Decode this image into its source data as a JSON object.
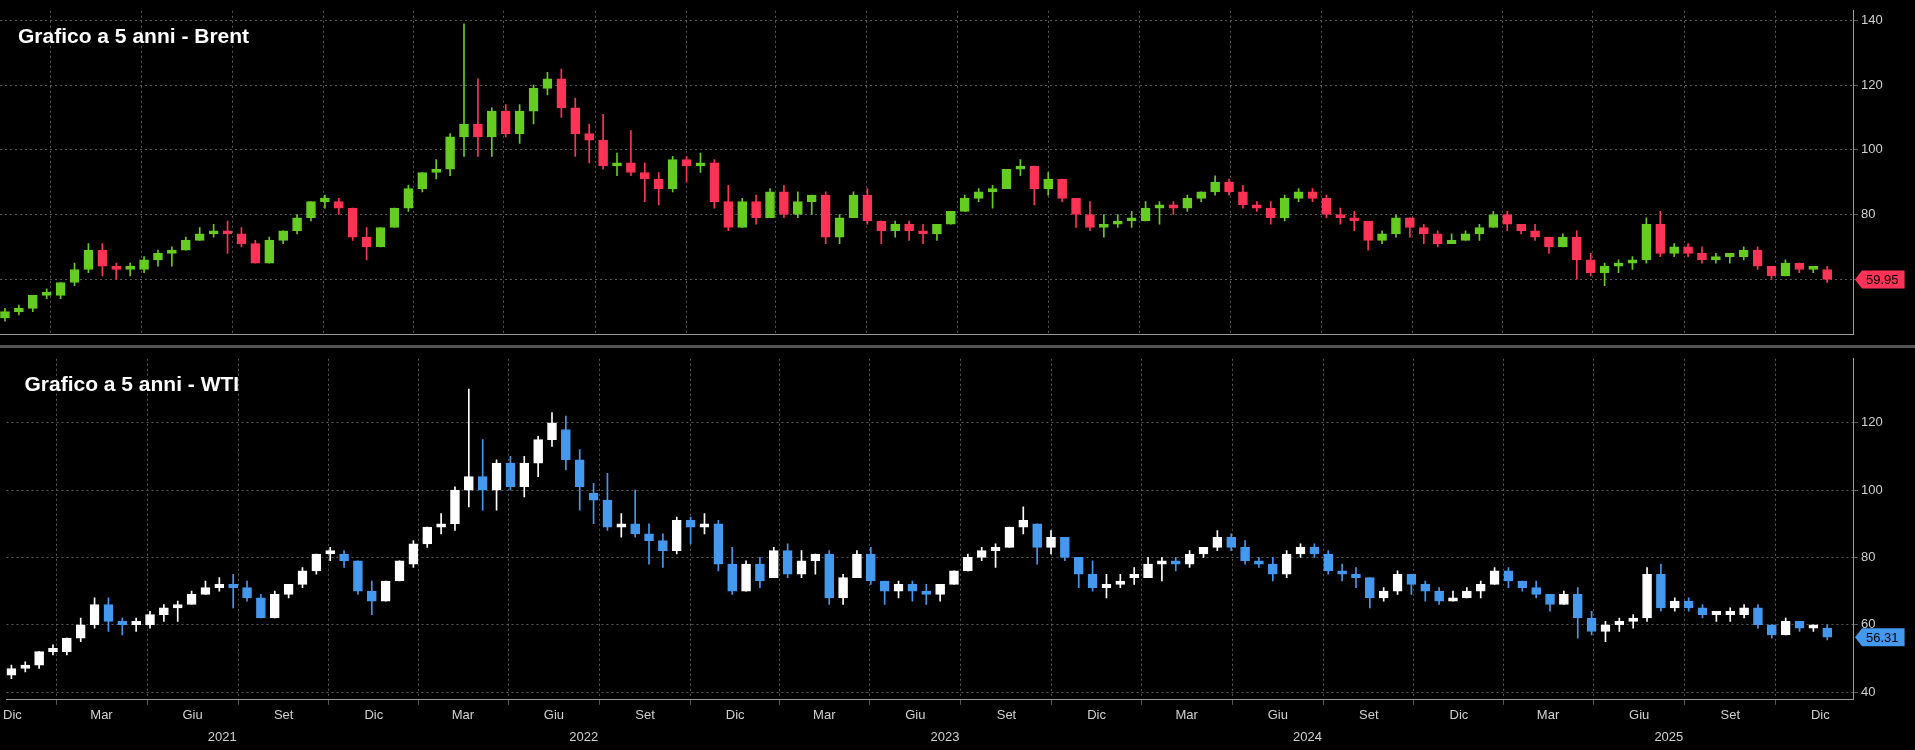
{
  "chart_data": [
    {
      "type": "candlestick",
      "title": "Grafico a 5 anni - Brent",
      "colors": [
        "#66cc22",
        "#66cc22",
        "#66cc22",
        "#66cc22",
        "#66cc22",
        "#66cc22",
        "#66cc22",
        "#ff3355",
        "#ff3355",
        "#66cc22",
        "#66cc22",
        "#66cc22",
        "#66cc22",
        "#66cc22",
        "#66cc22",
        "#66cc22",
        "#ff3355",
        "#ff3355",
        "#ff3355",
        "#66cc22",
        "#66cc22",
        "#66cc22",
        "#66cc22",
        "#66cc22",
        "#ff3355",
        "#ff3355",
        "#ff3355",
        "#66cc22",
        "#66cc22",
        "#66cc22",
        "#66cc22",
        "#66cc22",
        "#66cc22",
        "#66cc22",
        "#ff3355",
        "#66cc22",
        "#ff3355",
        "#66cc22",
        "#66cc22",
        "#66cc22",
        "#ff3355",
        "#ff3355",
        "#ff3355",
        "#ff3355",
        "#66cc22",
        "#ff3355",
        "#ff3355",
        "#ff3355",
        "#66cc22",
        "#ff3355",
        "#66cc22",
        "#ff3355",
        "#ff3355",
        "#66cc22",
        "#ff3355",
        "#66cc22",
        "#ff3355",
        "#66cc22",
        "#66cc22",
        "#ff3355",
        "#66cc22",
        "#66cc22",
        "#ff3355",
        "#ff3355",
        "#66cc22",
        "#ff3355",
        "#ff3355",
        "#66cc22",
        "#66cc22",
        "#66cc22",
        "#66cc22",
        "#66cc22",
        "#66cc22",
        "#66cc22",
        "#ff3355",
        "#66cc22",
        "#ff3355",
        "#ff3355",
        "#ff3355",
        "#66cc22",
        "#66cc22",
        "#66cc22",
        "#66cc22",
        "#66cc22",
        "#ff3355",
        "#66cc22",
        "#66cc22",
        "#66cc22",
        "#ff3355",
        "#ff3355",
        "#ff3355",
        "#ff3355",
        "#66cc22",
        "#66cc22",
        "#ff3355",
        "#ff3355",
        "#ff3355",
        "#ff3355",
        "#ff3355",
        "#66cc22",
        "#66cc22",
        "#ff3355",
        "#ff3355",
        "#ff3355",
        "#66cc22",
        "#66cc22",
        "#66cc22",
        "#66cc22",
        "#ff3355",
        "#ff3355",
        "#ff3355",
        "#ff3355",
        "#66cc22",
        "#ff3355",
        "#ff3355",
        "#66cc22",
        "#66cc22",
        "#66cc22",
        "#66cc22",
        "#ff3355",
        "#66cc22",
        "#ff3355",
        "#ff3355",
        "#66cc22",
        "#66cc22",
        "#66cc22",
        "#ff3355",
        "#ff3355",
        "#66cc22",
        "#ff3355",
        "#66cc22",
        "#ff3355"
      ],
      "x": [
        "2020-11-30",
        "2020-12-14",
        "2020-12-28",
        "2021-01-11",
        "2021-01-25",
        "2021-02-08",
        "2021-02-22",
        "2021-03-08",
        "2021-03-22",
        "2021-04-05",
        "2021-04-19",
        "2021-05-03",
        "2021-05-17",
        "2021-05-31",
        "2021-06-14",
        "2021-06-28",
        "2021-07-12",
        "2021-07-26",
        "2021-08-09",
        "2021-08-23",
        "2021-09-06",
        "2021-09-20",
        "2021-10-04",
        "2021-10-18",
        "2021-11-01",
        "2021-11-15",
        "2021-11-29",
        "2021-12-13",
        "2021-12-27",
        "2022-01-10",
        "2022-01-24",
        "2022-02-07",
        "2022-02-21",
        "2022-03-07",
        "2022-03-21",
        "2022-04-04",
        "2022-04-18",
        "2022-05-02",
        "2022-05-16",
        "2022-05-30",
        "2022-06-13",
        "2022-06-27",
        "2022-07-11",
        "2022-07-25",
        "2022-08-08",
        "2022-08-22",
        "2022-09-05",
        "2022-09-19",
        "2022-10-03",
        "2022-10-17",
        "2022-10-31",
        "2022-11-14",
        "2022-11-28",
        "2022-12-12",
        "2022-12-26",
        "2023-01-09",
        "2023-01-23",
        "2023-02-06",
        "2023-02-20",
        "2023-03-06",
        "2023-03-20",
        "2023-04-03",
        "2023-04-17",
        "2023-05-01",
        "2023-05-15",
        "2023-05-29",
        "2023-06-12",
        "2023-06-26",
        "2023-07-10",
        "2023-07-24",
        "2023-08-07",
        "2023-08-21",
        "2023-09-04",
        "2023-09-18",
        "2023-10-02",
        "2023-10-16",
        "2023-10-30",
        "2023-11-13",
        "2023-11-27",
        "2023-12-11",
        "2023-12-25",
        "2024-01-08",
        "2024-01-22",
        "2024-02-05",
        "2024-02-19",
        "2024-03-04",
        "2024-03-18",
        "2024-04-01",
        "2024-04-15",
        "2024-04-29",
        "2024-05-13",
        "2024-05-27",
        "2024-06-10",
        "2024-06-24",
        "2024-07-08",
        "2024-07-22",
        "2024-08-05",
        "2024-08-19",
        "2024-09-02",
        "2024-09-16",
        "2024-09-30",
        "2024-10-14",
        "2024-10-28",
        "2024-11-11",
        "2024-11-25",
        "2024-12-09",
        "2024-12-23",
        "2025-01-06",
        "2025-01-20",
        "2025-02-03",
        "2025-02-17",
        "2025-03-03",
        "2025-03-17",
        "2025-03-31",
        "2025-04-14",
        "2025-04-28",
        "2025-05-12",
        "2025-05-26",
        "2025-06-09",
        "2025-06-23",
        "2025-07-07",
        "2025-07-21",
        "2025-08-04",
        "2025-08-18",
        "2025-09-01",
        "2025-09-15",
        "2025-09-29",
        "2025-10-13",
        "2025-10-27",
        "2025-11-10",
        "2025-11-24",
        "2025-12-08"
      ],
      "ohlc": [
        [
          48,
          51,
          47,
          50
        ],
        [
          50,
          52,
          49,
          51
        ],
        [
          51,
          55,
          50,
          55
        ],
        [
          55,
          57,
          54,
          56
        ],
        [
          55,
          59,
          54,
          59
        ],
        [
          59,
          65,
          58,
          63
        ],
        [
          63,
          71,
          62,
          69
        ],
        [
          69,
          71,
          61,
          64
        ],
        [
          64,
          65,
          60,
          63
        ],
        [
          63,
          65,
          61,
          64
        ],
        [
          63,
          67,
          62,
          66
        ],
        [
          66,
          69,
          64,
          68
        ],
        [
          68,
          70,
          64,
          69
        ],
        [
          69,
          73,
          69,
          72
        ],
        [
          72,
          76,
          72,
          74
        ],
        [
          74,
          77,
          73,
          75
        ],
        [
          75,
          78,
          68,
          74
        ],
        [
          74,
          76,
          70,
          71
        ],
        [
          71,
          72,
          65,
          65
        ],
        [
          65,
          73,
          65,
          72
        ],
        [
          72,
          75,
          71,
          75
        ],
        [
          75,
          80,
          74,
          79
        ],
        [
          79,
          84,
          78,
          84
        ],
        [
          84,
          86,
          82,
          85
        ],
        [
          84,
          85,
          80,
          82
        ],
        [
          82,
          82,
          72,
          73
        ],
        [
          73,
          76,
          66,
          70
        ],
        [
          70,
          76,
          70,
          76
        ],
        [
          76,
          82,
          76,
          82
        ],
        [
          82,
          89,
          81,
          88
        ],
        [
          88,
          93,
          87,
          93
        ],
        [
          93,
          97,
          91,
          94
        ],
        [
          94,
          105,
          92,
          104
        ],
        [
          104,
          139,
          98,
          108
        ],
        [
          108,
          122,
          98,
          104
        ],
        [
          104,
          113,
          98,
          112
        ],
        [
          112,
          114,
          104,
          105
        ],
        [
          105,
          114,
          102,
          112
        ],
        [
          112,
          120,
          108,
          119
        ],
        [
          119,
          124,
          117,
          122
        ],
        [
          122,
          125,
          110,
          113
        ],
        [
          113,
          116,
          98,
          105
        ],
        [
          105,
          108,
          96,
          103
        ],
        [
          103,
          111,
          94,
          95
        ],
        [
          95,
          99,
          92,
          96
        ],
        [
          96,
          106,
          92,
          93
        ],
        [
          93,
          96,
          84,
          91
        ],
        [
          91,
          93,
          83,
          88
        ],
        [
          88,
          98,
          87,
          97
        ],
        [
          97,
          98,
          90,
          95
        ],
        [
          95,
          99,
          93,
          96
        ],
        [
          96,
          97,
          82,
          84
        ],
        [
          84,
          89,
          75,
          76
        ],
        [
          76,
          85,
          76,
          84
        ],
        [
          84,
          86,
          77,
          79
        ],
        [
          79,
          88,
          79,
          87
        ],
        [
          87,
          89,
          79,
          80
        ],
        [
          80,
          87,
          79,
          84
        ],
        [
          84,
          86,
          80,
          86
        ],
        [
          86,
          87,
          71,
          73
        ],
        [
          73,
          80,
          71,
          79
        ],
        [
          79,
          87,
          79,
          86
        ],
        [
          86,
          88,
          77,
          78
        ],
        [
          78,
          78,
          71,
          75
        ],
        [
          75,
          78,
          73,
          77
        ],
        [
          77,
          78,
          72,
          75
        ],
        [
          75,
          77,
          71,
          74
        ],
        [
          74,
          77,
          72,
          77
        ],
        [
          77,
          81,
          77,
          81
        ],
        [
          81,
          86,
          81,
          85
        ],
        [
          85,
          88,
          84,
          87
        ],
        [
          87,
          89,
          82,
          88
        ],
        [
          88,
          94,
          88,
          94
        ],
        [
          94,
          97,
          92,
          95
        ],
        [
          95,
          95,
          83,
          88
        ],
        [
          88,
          93,
          86,
          91
        ],
        [
          91,
          91,
          84,
          85
        ],
        [
          85,
          85,
          76,
          80
        ],
        [
          80,
          84,
          75,
          76
        ],
        [
          76,
          80,
          73,
          77
        ],
        [
          77,
          80,
          76,
          78
        ],
        [
          78,
          81,
          76,
          79
        ],
        [
          78,
          84,
          78,
          82
        ],
        [
          82,
          84,
          77,
          83
        ],
        [
          83,
          84,
          80,
          82
        ],
        [
          82,
          86,
          81,
          85
        ],
        [
          85,
          87,
          84,
          87
        ],
        [
          87,
          92,
          86,
          90
        ],
        [
          90,
          91,
          86,
          87
        ],
        [
          87,
          89,
          82,
          83
        ],
        [
          83,
          84,
          81,
          82
        ],
        [
          82,
          84,
          77,
          79
        ],
        [
          79,
          86,
          78,
          85
        ],
        [
          85,
          88,
          84,
          87
        ],
        [
          87,
          88,
          84,
          85
        ],
        [
          85,
          86,
          79,
          80
        ],
        [
          80,
          82,
          77,
          79
        ],
        [
          79,
          81,
          75,
          78
        ],
        [
          78,
          78,
          69,
          72
        ],
        [
          72,
          75,
          71,
          74
        ],
        [
          74,
          80,
          73,
          79
        ],
        [
          79,
          79,
          73,
          76
        ],
        [
          76,
          77,
          71,
          74
        ],
        [
          74,
          75,
          70,
          71
        ],
        [
          71,
          74,
          71,
          72
        ],
        [
          72,
          75,
          72,
          74
        ],
        [
          74,
          77,
          72,
          76
        ],
        [
          76,
          81,
          76,
          80
        ],
        [
          80,
          81,
          75,
          77
        ],
        [
          77,
          77,
          74,
          75
        ],
        [
          75,
          77,
          72,
          73
        ],
        [
          73,
          73,
          68,
          70
        ],
        [
          70,
          74,
          70,
          73
        ],
        [
          73,
          75,
          60,
          66
        ],
        [
          66,
          68,
          61,
          62
        ],
        [
          62,
          65,
          58,
          64
        ],
        [
          64,
          66,
          62,
          65
        ],
        [
          65,
          67,
          63,
          66
        ],
        [
          66,
          79,
          65,
          77
        ],
        [
          77,
          81,
          67,
          68
        ],
        [
          68,
          71,
          67,
          70
        ],
        [
          70,
          71,
          67,
          68
        ],
        [
          68,
          70,
          65,
          66
        ],
        [
          66,
          68,
          65,
          67
        ],
        [
          67,
          68,
          65,
          68
        ],
        [
          67,
          70,
          66,
          69
        ],
        [
          69,
          70,
          63,
          64
        ],
        [
          64,
          64,
          60,
          61
        ],
        [
          61,
          66,
          61,
          65
        ],
        [
          65,
          65,
          62,
          63
        ],
        [
          63,
          64,
          62,
          64
        ],
        [
          63,
          64,
          59,
          59.95
        ]
      ],
      "xlim": [
        "2020-11-25",
        "2026-01-03"
      ],
      "xticks": [
        {
          "value": "2020-12-01",
          "label": null
        },
        {
          "value": "2021-03-01",
          "label": null
        },
        {
          "value": "2021-06-01",
          "label": null
        },
        {
          "value": "2021-09-01",
          "label": null
        },
        {
          "value": "2021-12-01",
          "label": null
        },
        {
          "value": "2022-03-01",
          "label": null
        },
        {
          "value": "2022-06-01",
          "label": null
        },
        {
          "value": "2022-09-01",
          "label": null
        },
        {
          "value": "2022-12-01",
          "label": null
        },
        {
          "value": "2023-03-01",
          "label": null
        },
        {
          "value": "2023-06-01",
          "label": null
        },
        {
          "value": "2023-09-01",
          "label": null
        },
        {
          "value": "2023-12-01",
          "label": null
        },
        {
          "value": "2024-03-01",
          "label": null
        },
        {
          "value": "2024-06-01",
          "label": null
        },
        {
          "value": "2024-09-01",
          "label": null
        },
        {
          "value": "2024-12-01",
          "label": null
        },
        {
          "value": "2025-03-01",
          "label": null
        },
        {
          "value": "2025-06-01",
          "label": null
        },
        {
          "value": "2025-09-01",
          "label": null
        },
        {
          "value": "2025-12-01",
          "label": null
        }
      ],
      "ylim": [
        43,
        143
      ],
      "yticks": [
        {
          "value": 60,
          "label": null
        },
        80,
        100,
        120,
        140
      ],
      "tick_labels": "y",
      "grid": true,
      "annotations": [
        "59.95"
      ]
    },
    {
      "type": "candlestick",
      "title": "Grafico a 5 anni - WTI",
      "colors": [
        "#ffffff",
        "#ffffff",
        "#ffffff",
        "#ffffff",
        "#ffffff",
        "#ffffff",
        "#ffffff",
        "#4499ee",
        "#4499ee",
        "#ffffff",
        "#ffffff",
        "#ffffff",
        "#ffffff",
        "#ffffff",
        "#ffffff",
        "#ffffff",
        "#4499ee",
        "#4499ee",
        "#4499ee",
        "#ffffff",
        "#ffffff",
        "#ffffff",
        "#ffffff",
        "#ffffff",
        "#4499ee",
        "#4499ee",
        "#4499ee",
        "#ffffff",
        "#ffffff",
        "#ffffff",
        "#ffffff",
        "#ffffff",
        "#ffffff",
        "#ffffff",
        "#4499ee",
        "#ffffff",
        "#4499ee",
        "#ffffff",
        "#ffffff",
        "#ffffff",
        "#4499ee",
        "#4499ee",
        "#4499ee",
        "#4499ee",
        "#ffffff",
        "#4499ee",
        "#4499ee",
        "#4499ee",
        "#ffffff",
        "#4499ee",
        "#ffffff",
        "#4499ee",
        "#4499ee",
        "#ffffff",
        "#4499ee",
        "#ffffff",
        "#4499ee",
        "#ffffff",
        "#ffffff",
        "#4499ee",
        "#ffffff",
        "#ffffff",
        "#4499ee",
        "#4499ee",
        "#ffffff",
        "#4499ee",
        "#4499ee",
        "#ffffff",
        "#ffffff",
        "#ffffff",
        "#ffffff",
        "#ffffff",
        "#ffffff",
        "#ffffff",
        "#4499ee",
        "#ffffff",
        "#4499ee",
        "#4499ee",
        "#4499ee",
        "#ffffff",
        "#ffffff",
        "#ffffff",
        "#ffffff",
        "#ffffff",
        "#4499ee",
        "#ffffff",
        "#ffffff",
        "#ffffff",
        "#4499ee",
        "#4499ee",
        "#4499ee",
        "#4499ee",
        "#ffffff",
        "#ffffff",
        "#4499ee",
        "#4499ee",
        "#4499ee",
        "#4499ee",
        "#4499ee",
        "#ffffff",
        "#ffffff",
        "#4499ee",
        "#4499ee",
        "#4499ee",
        "#ffffff",
        "#ffffff",
        "#ffffff",
        "#ffffff",
        "#4499ee",
        "#4499ee",
        "#4499ee",
        "#4499ee",
        "#ffffff",
        "#4499ee",
        "#4499ee",
        "#ffffff",
        "#ffffff",
        "#ffffff",
        "#ffffff",
        "#4499ee",
        "#ffffff",
        "#4499ee",
        "#4499ee",
        "#ffffff",
        "#ffffff",
        "#ffffff",
        "#4499ee",
        "#4499ee",
        "#ffffff",
        "#4499ee",
        "#ffffff",
        "#4499ee"
      ],
      "x": [
        "2020-11-30",
        "2020-12-14",
        "2020-12-28",
        "2021-01-11",
        "2021-01-25",
        "2021-02-08",
        "2021-02-22",
        "2021-03-08",
        "2021-03-22",
        "2021-04-05",
        "2021-04-19",
        "2021-05-03",
        "2021-05-17",
        "2021-05-31",
        "2021-06-14",
        "2021-06-28",
        "2021-07-12",
        "2021-07-26",
        "2021-08-09",
        "2021-08-23",
        "2021-09-06",
        "2021-09-20",
        "2021-10-04",
        "2021-10-18",
        "2021-11-01",
        "2021-11-15",
        "2021-11-29",
        "2021-12-13",
        "2021-12-27",
        "2022-01-10",
        "2022-01-24",
        "2022-02-07",
        "2022-02-21",
        "2022-03-07",
        "2022-03-21",
        "2022-04-04",
        "2022-04-18",
        "2022-05-02",
        "2022-05-16",
        "2022-05-30",
        "2022-06-13",
        "2022-06-27",
        "2022-07-11",
        "2022-07-25",
        "2022-08-08",
        "2022-08-22",
        "2022-09-05",
        "2022-09-19",
        "2022-10-03",
        "2022-10-17",
        "2022-10-31",
        "2022-11-14",
        "2022-11-28",
        "2022-12-12",
        "2022-12-26",
        "2023-01-09",
        "2023-01-23",
        "2023-02-06",
        "2023-02-20",
        "2023-03-06",
        "2023-03-20",
        "2023-04-03",
        "2023-04-17",
        "2023-05-01",
        "2023-05-15",
        "2023-05-29",
        "2023-06-12",
        "2023-06-26",
        "2023-07-10",
        "2023-07-24",
        "2023-08-07",
        "2023-08-21",
        "2023-09-04",
        "2023-09-18",
        "2023-10-02",
        "2023-10-16",
        "2023-10-30",
        "2023-11-13",
        "2023-11-27",
        "2023-12-11",
        "2023-12-25",
        "2024-01-08",
        "2024-01-22",
        "2024-02-05",
        "2024-02-19",
        "2024-03-04",
        "2024-03-18",
        "2024-04-01",
        "2024-04-15",
        "2024-04-29",
        "2024-05-13",
        "2024-05-27",
        "2024-06-10",
        "2024-06-24",
        "2024-07-08",
        "2024-07-22",
        "2024-08-05",
        "2024-08-19",
        "2024-09-02",
        "2024-09-16",
        "2024-09-30",
        "2024-10-14",
        "2024-10-28",
        "2024-11-11",
        "2024-11-25",
        "2024-12-09",
        "2024-12-23",
        "2025-01-06",
        "2025-01-20",
        "2025-02-03",
        "2025-02-17",
        "2025-03-03",
        "2025-03-17",
        "2025-03-31",
        "2025-04-14",
        "2025-04-28",
        "2025-05-12",
        "2025-05-26",
        "2025-06-09",
        "2025-06-23",
        "2025-07-07",
        "2025-07-21",
        "2025-08-04",
        "2025-08-18",
        "2025-09-01",
        "2025-09-15",
        "2025-09-29",
        "2025-10-13",
        "2025-10-27",
        "2025-11-10",
        "2025-11-24",
        "2025-12-08"
      ],
      "ohlc": [
        [
          45,
          48,
          44,
          47
        ],
        [
          47,
          49,
          46,
          48
        ],
        [
          48,
          52,
          47,
          52
        ],
        [
          52,
          54,
          51,
          53
        ],
        [
          52,
          56,
          51,
          56
        ],
        [
          56,
          62,
          55,
          60
        ],
        [
          60,
          68,
          59,
          66
        ],
        [
          66,
          68,
          58,
          61
        ],
        [
          61,
          62,
          57,
          60
        ],
        [
          60,
          62,
          58,
          61
        ],
        [
          60,
          64,
          59,
          63
        ],
        [
          63,
          66,
          61,
          65
        ],
        [
          65,
          67,
          61,
          66
        ],
        [
          66,
          70,
          66,
          69
        ],
        [
          69,
          73,
          69,
          71
        ],
        [
          71,
          74,
          70,
          72
        ],
        [
          72,
          75,
          65,
          71
        ],
        [
          71,
          73,
          67,
          68
        ],
        [
          68,
          69,
          62,
          62
        ],
        [
          62,
          70,
          62,
          69
        ],
        [
          69,
          72,
          68,
          72
        ],
        [
          72,
          77,
          71,
          76
        ],
        [
          76,
          81,
          75,
          81
        ],
        [
          81,
          83,
          79,
          82
        ],
        [
          81,
          82,
          77,
          79
        ],
        [
          79,
          79,
          69,
          70
        ],
        [
          70,
          73,
          63,
          67
        ],
        [
          67,
          73,
          67,
          73
        ],
        [
          73,
          79,
          73,
          79
        ],
        [
          78,
          85,
          77,
          84
        ],
        [
          84,
          89,
          83,
          89
        ],
        [
          89,
          93,
          87,
          90
        ],
        [
          90,
          101,
          88,
          100
        ],
        [
          100,
          130,
          95,
          104
        ],
        [
          104,
          115,
          94,
          100
        ],
        [
          100,
          109,
          94,
          108
        ],
        [
          108,
          110,
          100,
          101
        ],
        [
          101,
          110,
          98,
          108
        ],
        [
          108,
          116,
          104,
          115
        ],
        [
          115,
          123,
          113,
          120
        ],
        [
          118,
          122,
          106,
          109
        ],
        [
          109,
          112,
          94,
          101
        ],
        [
          99,
          102,
          90,
          97
        ],
        [
          97,
          105,
          88,
          89
        ],
        [
          89,
          93,
          86,
          90
        ],
        [
          90,
          100,
          86,
          87
        ],
        [
          87,
          90,
          78,
          85
        ],
        [
          85,
          87,
          77,
          82
        ],
        [
          82,
          92,
          81,
          91
        ],
        [
          91,
          92,
          84,
          89
        ],
        [
          89,
          93,
          87,
          90
        ],
        [
          90,
          91,
          76,
          78
        ],
        [
          78,
          83,
          69,
          70
        ],
        [
          70,
          79,
          70,
          78
        ],
        [
          78,
          80,
          71,
          73
        ],
        [
          74,
          83,
          74,
          82
        ],
        [
          82,
          84,
          74,
          75
        ],
        [
          75,
          82,
          74,
          79
        ],
        [
          79,
          81,
          75,
          81
        ],
        [
          81,
          82,
          66,
          68
        ],
        [
          68,
          75,
          66,
          74
        ],
        [
          74,
          82,
          74,
          81
        ],
        [
          81,
          83,
          72,
          73
        ],
        [
          73,
          73,
          66,
          70
        ],
        [
          70,
          73,
          68,
          72
        ],
        [
          72,
          73,
          67,
          70
        ],
        [
          70,
          72,
          66,
          69
        ],
        [
          69,
          72,
          67,
          72
        ],
        [
          72,
          76,
          72,
          76
        ],
        [
          76,
          81,
          76,
          80
        ],
        [
          80,
          83,
          79,
          82
        ],
        [
          82,
          84,
          77,
          83
        ],
        [
          83,
          89,
          83,
          89
        ],
        [
          89,
          95,
          87,
          91
        ],
        [
          90,
          90,
          78,
          83
        ],
        [
          83,
          88,
          81,
          86
        ],
        [
          86,
          86,
          79,
          80
        ],
        [
          80,
          80,
          71,
          75
        ],
        [
          75,
          79,
          70,
          71
        ],
        [
          71,
          75,
          68,
          72
        ],
        [
          72,
          75,
          71,
          73
        ],
        [
          74,
          77,
          72,
          75
        ],
        [
          74,
          80,
          74,
          78
        ],
        [
          78,
          80,
          73,
          79
        ],
        [
          79,
          80,
          76,
          78
        ],
        [
          78,
          82,
          77,
          81
        ],
        [
          81,
          83,
          80,
          83
        ],
        [
          83,
          88,
          82,
          86
        ],
        [
          86,
          87,
          82,
          83
        ],
        [
          83,
          85,
          78,
          79
        ],
        [
          79,
          80,
          77,
          78
        ],
        [
          78,
          80,
          73,
          75
        ],
        [
          75,
          82,
          74,
          81
        ],
        [
          81,
          84,
          80,
          83
        ],
        [
          83,
          84,
          80,
          81
        ],
        [
          81,
          82,
          75,
          76
        ],
        [
          76,
          78,
          73,
          75
        ],
        [
          75,
          77,
          71,
          74
        ],
        [
          74,
          74,
          65,
          68
        ],
        [
          68,
          71,
          67,
          70
        ],
        [
          70,
          76,
          69,
          75
        ],
        [
          75,
          75,
          69,
          72
        ],
        [
          72,
          73,
          67,
          70
        ],
        [
          70,
          71,
          66,
          67
        ],
        [
          67,
          70,
          67,
          68
        ],
        [
          68,
          71,
          68,
          70
        ],
        [
          70,
          73,
          68,
          72
        ],
        [
          72,
          77,
          72,
          76
        ],
        [
          76,
          77,
          71,
          73
        ],
        [
          73,
          73,
          70,
          71
        ],
        [
          71,
          73,
          68,
          69
        ],
        [
          69,
          69,
          64,
          66
        ],
        [
          66,
          70,
          66,
          69
        ],
        [
          69,
          71,
          56,
          62
        ],
        [
          62,
          64,
          57,
          58
        ],
        [
          58,
          61,
          55,
          60
        ],
        [
          60,
          62,
          58,
          61
        ],
        [
          61,
          63,
          59,
          62
        ],
        [
          62,
          77,
          61,
          75
        ],
        [
          75,
          78,
          64,
          65
        ],
        [
          65,
          68,
          64,
          67
        ],
        [
          67,
          68,
          64,
          65
        ],
        [
          65,
          66,
          62,
          63
        ],
        [
          63,
          64,
          61,
          64
        ],
        [
          63,
          65,
          61,
          64
        ],
        [
          63,
          66,
          62,
          65
        ],
        [
          65,
          66,
          59,
          60
        ],
        [
          60,
          60,
          56,
          57
        ],
        [
          57,
          62,
          57,
          61
        ],
        [
          61,
          61,
          58,
          59
        ],
        [
          59,
          60,
          58,
          60
        ],
        [
          59,
          60,
          55.5,
          56.31
        ]
      ],
      "xlim": [
        "2020-11-25",
        "2026-01-03"
      ],
      "xticks": [
        {
          "value": "2020-12-01",
          "label": "Dic"
        },
        {
          "value": "2021-03-01",
          "label": "Mar"
        },
        {
          "value": "2021-06-01",
          "label": "Giu"
        },
        {
          "value": "2021-09-01",
          "label": "Set"
        },
        {
          "value": "2021-12-01",
          "label": "Dic"
        },
        {
          "value": "2022-03-01",
          "label": "Mar"
        },
        {
          "value": "2022-06-01",
          "label": "Giu"
        },
        {
          "value": "2022-09-01",
          "label": "Set"
        },
        {
          "value": "2022-12-01",
          "label": "Dic"
        },
        {
          "value": "2023-03-01",
          "label": "Mar"
        },
        {
          "value": "2023-06-01",
          "label": "Giu"
        },
        {
          "value": "2023-09-01",
          "label": "Set"
        },
        {
          "value": "2023-12-01",
          "label": "Dic"
        },
        {
          "value": "2024-03-01",
          "label": "Mar"
        },
        {
          "value": "2024-06-01",
          "label": "Giu"
        },
        {
          "value": "2024-09-01",
          "label": "Set"
        },
        {
          "value": "2024-12-01",
          "label": "Dic"
        },
        {
          "value": "2025-03-01",
          "label": "Mar"
        },
        {
          "value": "2025-06-01",
          "label": "Giu"
        },
        {
          "value": "2025-09-01",
          "label": "Set"
        },
        {
          "value": "2025-12-01",
          "label": "Dic"
        }
      ],
      "x2lim": [
        "2020-11-25",
        "2026-01-03"
      ],
      "x2ticks": [
        {
          "value": "2021-07-01",
          "label": "2021"
        },
        {
          "value": "2022-07-01",
          "label": "2022"
        },
        {
          "value": "2023-07-01",
          "label": "2023"
        },
        {
          "value": "2024-07-01",
          "label": "2024"
        },
        {
          "value": "2025-07-01",
          "label": "2025"
        }
      ],
      "ylim": [
        37.7,
        139
      ],
      "yticks": [
        40,
        60,
        80,
        100,
        120
      ],
      "grid": true,
      "annotations": [
        "56.31"
      ]
    }
  ]
}
